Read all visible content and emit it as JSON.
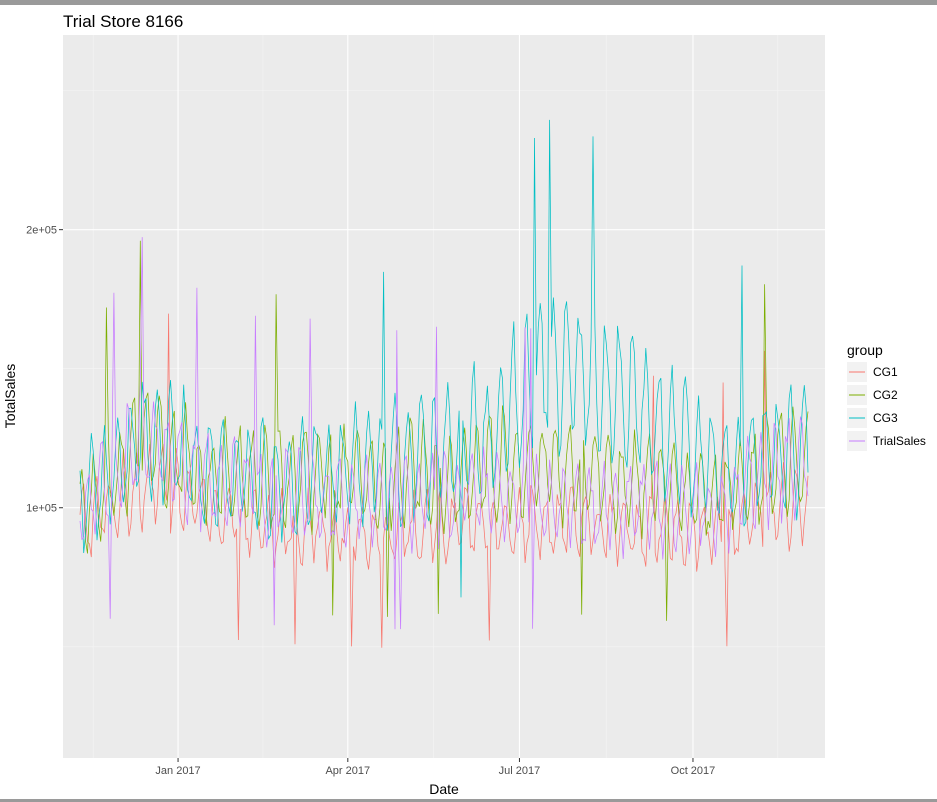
{
  "chart_data": {
    "type": "line",
    "title": "Trial Store  8166",
    "xlabel": "Date",
    "ylabel": "TotalSales",
    "x_start": "2016-11-10",
    "x_end": "2017-12-01",
    "xlim": [
      "2016-11-01",
      "2017-12-10"
    ],
    "ylim": [
      10000,
      270000
    ],
    "x_ticks": [
      {
        "date": "2017-01-01",
        "label": "Jan 2017"
      },
      {
        "date": "2017-04-01",
        "label": "Apr 2017"
      },
      {
        "date": "2017-07-01",
        "label": "Jul 2017"
      },
      {
        "date": "2017-10-01",
        "label": "Oct 2017"
      }
    ],
    "y_ticks": [
      {
        "value": 100000,
        "label": "1e+05"
      },
      {
        "value": 200000,
        "label": "2e+05"
      }
    ],
    "grid": true,
    "legend": {
      "title": "group",
      "position": "right",
      "entries": [
        "CG1",
        "CG2",
        "CG3",
        "TrialSales"
      ]
    },
    "series": [
      {
        "name": "CG1",
        "color": "#F8766D",
        "monthly_mean": [
          [
            "2016-11-15",
            95000
          ],
          [
            "2016-12-15",
            110000
          ],
          [
            "2017-01-15",
            100000
          ],
          [
            "2017-02-15",
            92000
          ],
          [
            "2017-03-15",
            93000
          ],
          [
            "2017-04-15",
            90000
          ],
          [
            "2017-05-15",
            92000
          ],
          [
            "2017-06-15",
            95000
          ],
          [
            "2017-07-15",
            95000
          ],
          [
            "2017-08-15",
            93000
          ],
          [
            "2017-09-15",
            92000
          ],
          [
            "2017-10-15",
            90000
          ],
          [
            "2017-11-15",
            100000
          ]
        ]
      },
      {
        "name": "CG2",
        "color": "#7CAE00",
        "monthly_mean": [
          [
            "2016-11-15",
            100000
          ],
          [
            "2016-12-15",
            125000
          ],
          [
            "2017-01-15",
            112000
          ],
          [
            "2017-02-15",
            110000
          ],
          [
            "2017-03-15",
            112000
          ],
          [
            "2017-04-15",
            110000
          ],
          [
            "2017-05-15",
            112000
          ],
          [
            "2017-06-15",
            115000
          ],
          [
            "2017-07-15",
            115000
          ],
          [
            "2017-08-15",
            110000
          ],
          [
            "2017-09-15",
            108000
          ],
          [
            "2017-10-15",
            105000
          ],
          [
            "2017-11-15",
            115000
          ]
        ]
      },
      {
        "name": "CG3",
        "color": "#00BFC4",
        "monthly_mean": [
          [
            "2016-11-15",
            105000
          ],
          [
            "2016-12-15",
            125000
          ],
          [
            "2017-01-15",
            115000
          ],
          [
            "2017-02-15",
            110000
          ],
          [
            "2017-03-15",
            112000
          ],
          [
            "2017-04-15",
            115000
          ],
          [
            "2017-05-15",
            118000
          ],
          [
            "2017-06-15",
            128000
          ],
          [
            "2017-07-15",
            150000
          ],
          [
            "2017-08-15",
            145000
          ],
          [
            "2017-09-15",
            128000
          ],
          [
            "2017-10-15",
            115000
          ],
          [
            "2017-11-15",
            120000
          ]
        ]
      },
      {
        "name": "TrialSales",
        "color": "#C77CFF",
        "monthly_mean": [
          [
            "2016-11-15",
            100000
          ],
          [
            "2016-12-15",
            125000
          ],
          [
            "2017-01-15",
            110000
          ],
          [
            "2017-02-15",
            105000
          ],
          [
            "2017-03-15",
            105000
          ],
          [
            "2017-04-15",
            102000
          ],
          [
            "2017-05-15",
            103000
          ],
          [
            "2017-06-15",
            105000
          ],
          [
            "2017-07-15",
            102000
          ],
          [
            "2017-08-15",
            100000
          ],
          [
            "2017-09-15",
            100000
          ],
          [
            "2017-10-15",
            100000
          ],
          [
            "2017-11-15",
            115000
          ]
        ]
      }
    ]
  }
}
